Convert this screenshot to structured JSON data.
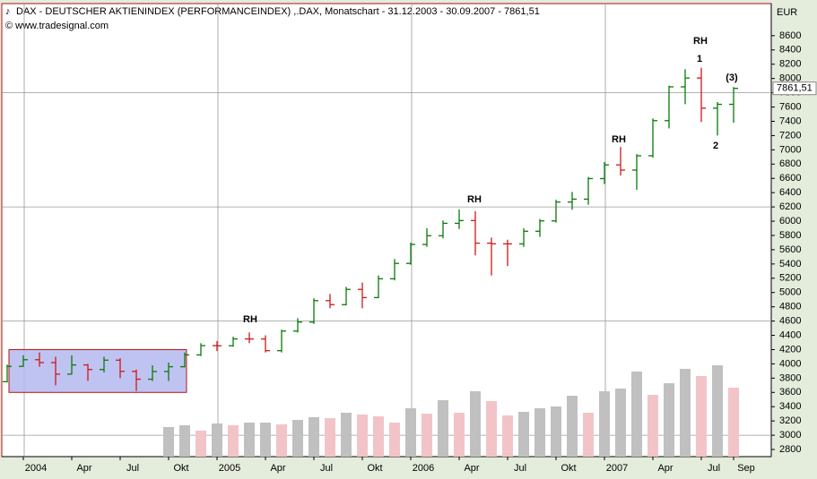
{
  "chart_data": {
    "type": "ohlc",
    "title": "DAX  - DEUTSCHER AKTIENINDEX (PERFORMANCEINDEX) ,.DAX, Monatschart - 31.12.2003 - 30.09.2007 - 7861,51",
    "source": "© www.tradesignal.com",
    "y_axis_label": "EUR",
    "categories": [
      null,
      "2004",
      null,
      null,
      "Apr",
      null,
      null,
      "Jul",
      null,
      null,
      "Okt",
      null,
      null,
      "2005",
      null,
      null,
      "Apr",
      null,
      null,
      "Jul",
      null,
      null,
      "Okt",
      null,
      null,
      "2006",
      null,
      null,
      "Apr",
      null,
      null,
      "Jul",
      null,
      null,
      "Okt",
      null,
      null,
      "2007",
      null,
      null,
      "Apr",
      null,
      null,
      "Jul",
      null,
      "Sep"
    ],
    "open": [
      3750,
      3965,
      4058,
      4018,
      3856,
      3985,
      3921,
      4052,
      3895,
      3785,
      3893,
      3960,
      4126,
      4256,
      4254,
      4350,
      4349,
      4185,
      4460,
      4586,
      4886,
      4830,
      5044,
      4929,
      5193,
      5408,
      5674,
      5796,
      5970,
      6009,
      5692,
      5683,
      5682,
      5859,
      6004,
      6268,
      6309,
      6597,
      6789,
      6716,
      6917,
      7409,
      7883,
      8007,
      7584,
      7638
    ],
    "high": [
      3990,
      4120,
      4160,
      4100,
      4120,
      4000,
      4100,
      4080,
      3920,
      3980,
      4020,
      4160,
      4290,
      4320,
      4380,
      4440,
      4400,
      4480,
      4640,
      4920,
      4980,
      5080,
      5140,
      5240,
      5470,
      5700,
      5900,
      6010,
      6163,
      6140,
      5770,
      5740,
      5900,
      6030,
      6300,
      6410,
      6620,
      6830,
      7040,
      6940,
      7440,
      7900,
      8130,
      8151,
      7670,
      7880
    ],
    "low": [
      3740,
      3960,
      3960,
      3700,
      3850,
      3760,
      3880,
      3800,
      3620,
      3760,
      3760,
      3950,
      4110,
      4180,
      4240,
      4290,
      4160,
      4160,
      4440,
      4560,
      4780,
      4820,
      4780,
      4920,
      5170,
      5390,
      5640,
      5760,
      5890,
      5520,
      5240,
      5370,
      5640,
      5780,
      5980,
      6160,
      6230,
      6520,
      6640,
      6440,
      6890,
      7300,
      7640,
      7390,
      7200,
      7380
    ],
    "close": [
      3965,
      4058,
      4018,
      3856,
      3985,
      3921,
      4052,
      3895,
      3785,
      3893,
      3960,
      4126,
      4256,
      4254,
      4350,
      4349,
      4185,
      4460,
      4586,
      4886,
      4830,
      5044,
      4929,
      5193,
      5408,
      5674,
      5796,
      5970,
      6009,
      5692,
      5683,
      5682,
      5859,
      6004,
      6268,
      6309,
      6597,
      6789,
      6716,
      6917,
      7409,
      7883,
      8007,
      7584,
      7638,
      7861.51
    ],
    "up_color": "#0a7a0a",
    "down_color": "#d01818",
    "volume": [
      null,
      null,
      null,
      null,
      null,
      null,
      null,
      null,
      null,
      null,
      33,
      35,
      29,
      37,
      35,
      38,
      38,
      36,
      41,
      44,
      43,
      49,
      47,
      45,
      38,
      54,
      48,
      63,
      49,
      73,
      62,
      46,
      50,
      54,
      56,
      68,
      49,
      73,
      76,
      95,
      69,
      82,
      98,
      90,
      102,
      77
    ],
    "volume_colors": [
      null,
      null,
      null,
      null,
      null,
      null,
      null,
      null,
      null,
      null,
      "#c0c0c0",
      "#c0c0c0",
      "#f2c4c8",
      "#c0c0c0",
      "#f2c4c8",
      "#c0c0c0",
      "#c0c0c0",
      "#f2c4c8",
      "#c0c0c0",
      "#c0c0c0",
      "#f2c4c8",
      "#c0c0c0",
      "#f2c4c8",
      "#f2c4c8",
      "#f2c4c8",
      "#c0c0c0",
      "#f2c4c8",
      "#c0c0c0",
      "#f2c4c8",
      "#c0c0c0",
      "#f2c4c8",
      "#f2c4c8",
      "#c0c0c0",
      "#c0c0c0",
      "#c0c0c0",
      "#c0c0c0",
      "#f2c4c8",
      "#c0c0c0",
      "#c0c0c0",
      "#c0c0c0",
      "#f2c4c8",
      "#c0c0c0",
      "#c0c0c0",
      "#f2c4c8",
      "#c0c0c0",
      "#f2c4c8"
    ],
    "vlim": [
      0,
      100
    ],
    "ylim": [
      2700,
      9050
    ],
    "yticks": [
      2800,
      3000,
      3200,
      3400,
      3600,
      3800,
      4000,
      4200,
      4400,
      4600,
      4800,
      5000,
      5200,
      5400,
      5600,
      5800,
      6000,
      6200,
      6400,
      6600,
      6800,
      7000,
      7200,
      7400,
      7600,
      7800,
      8000,
      8200,
      8400,
      8600
    ],
    "grid": true,
    "last_value": 7861.51,
    "last_value_label": "7861,51",
    "range_box": {
      "low": 3600,
      "high": 4200,
      "color": "#b4b8f0"
    },
    "annotations": [
      "RH",
      "RH",
      "RH",
      "RH",
      "1",
      "2",
      "(3)"
    ]
  }
}
